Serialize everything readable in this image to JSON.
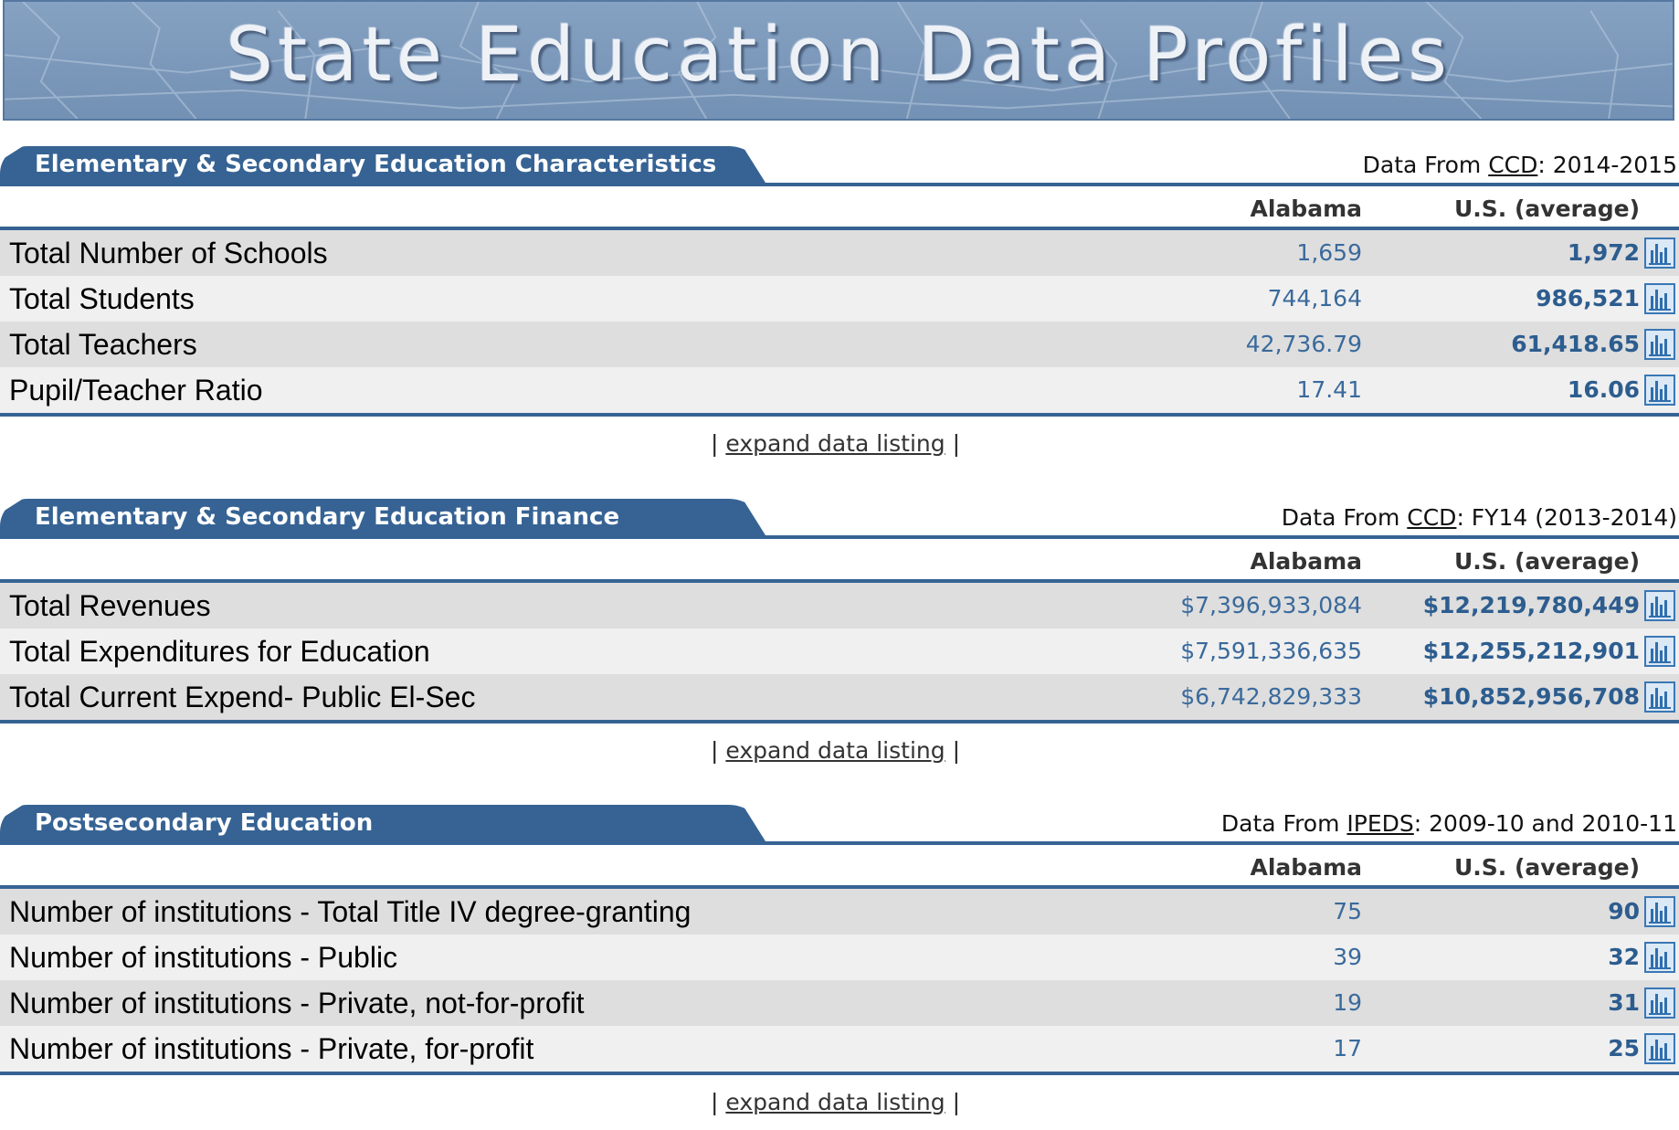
{
  "banner": {
    "title": "State Education Data Profiles"
  },
  "colors": {
    "accent": "#366394",
    "row_odd": "#dedede",
    "row_even": "#f0f0f0",
    "value_blue": "#3a6a9c"
  },
  "common": {
    "col_state": "Alabama",
    "col_us": "U.S. (average)",
    "expand_label": "expand data listing",
    "pipe": "|",
    "data_from": "Data From",
    "chart_icon": "bar-chart-icon"
  },
  "sections": [
    {
      "title": "Elementary & Secondary Education Characteristics",
      "source_link": "CCD",
      "source_period": ": 2014-2015",
      "rows": [
        {
          "label": "Total Number of Schools",
          "state": "1,659",
          "us": "1,972"
        },
        {
          "label": "Total Students",
          "state": "744,164",
          "us": "986,521"
        },
        {
          "label": "Total Teachers",
          "state": "42,736.79",
          "us": "61,418.65"
        },
        {
          "label": "Pupil/Teacher Ratio",
          "state": "17.41",
          "us": "16.06"
        }
      ]
    },
    {
      "title": "Elementary & Secondary Education Finance",
      "source_link": "CCD",
      "source_period": ": FY14 (2013-2014)",
      "rows": [
        {
          "label": "Total Revenues",
          "state": "$7,396,933,084",
          "us": "$12,219,780,449"
        },
        {
          "label": "Total Expenditures for Education",
          "state": "$7,591,336,635",
          "us": "$12,255,212,901"
        },
        {
          "label": "Total Current Expend- Public El-Sec",
          "state": "$6,742,829,333",
          "us": "$10,852,956,708"
        }
      ]
    },
    {
      "title": "Postsecondary Education",
      "source_link": "IPEDS",
      "source_period": ": 2009-10 and 2010-11",
      "rows": [
        {
          "label": "Number of institutions - Total Title IV degree-granting",
          "state": "75",
          "us": "90"
        },
        {
          "label": "Number of institutions - Public",
          "state": "39",
          "us": "32"
        },
        {
          "label": "Number of institutions - Private, not-for-profit",
          "state": "19",
          "us": "31"
        },
        {
          "label": "Number of institutions - Private, for-profit",
          "state": "17",
          "us": "25"
        }
      ]
    }
  ]
}
